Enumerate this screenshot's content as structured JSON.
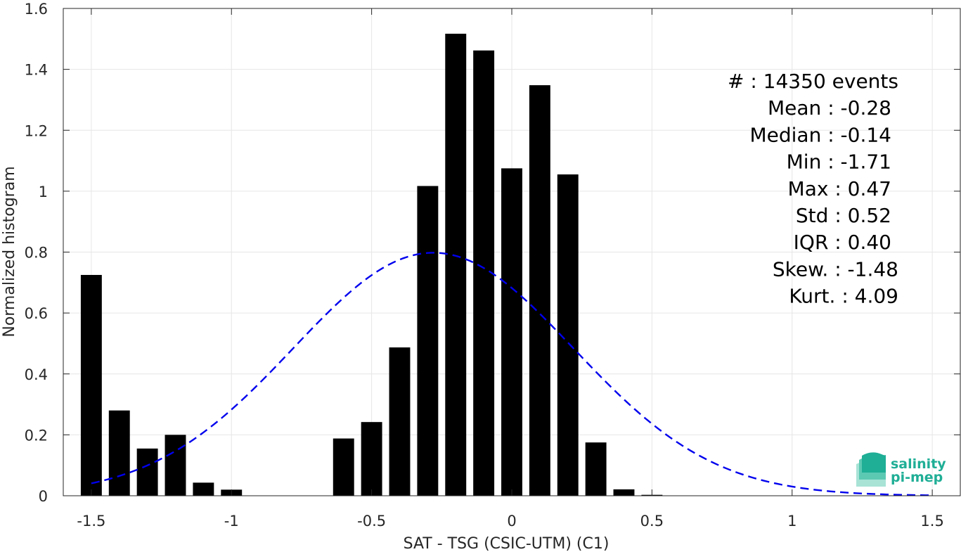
{
  "chart_data": {
    "type": "bar",
    "xlabel": "SAT - TSG (CSIC-UTM) (C1)",
    "ylabel": "Normalized histogram",
    "xlim": [
      -1.6,
      1.6
    ],
    "ylim": [
      0,
      1.6
    ],
    "xticks": [
      -1.5,
      -1,
      -0.5,
      0,
      0.5,
      1,
      1.5
    ],
    "xtick_labels": [
      "-1.5",
      "-1",
      "-0.5",
      "0",
      "0.5",
      "1",
      "1.5"
    ],
    "yticks": [
      0,
      0.2,
      0.4,
      0.6,
      0.8,
      1,
      1.2,
      1.4,
      1.6
    ],
    "ytick_labels": [
      "0",
      "0.2",
      "0.4",
      "0.6",
      "0.8",
      "1",
      "1.2",
      "1.4",
      "1.6"
    ],
    "grid": true,
    "bar_width": 0.075,
    "bars": {
      "x": [
        -1.5,
        -1.4,
        -1.3,
        -1.2,
        -1.1,
        -1.0,
        -0.9,
        -0.8,
        -0.7,
        -0.6,
        -0.5,
        -0.4,
        -0.3,
        -0.2,
        -0.1,
        0.0,
        0.1,
        0.2,
        0.3,
        0.4,
        0.5,
        0.6,
        0.7,
        0.8,
        0.9,
        1.0,
        1.1,
        1.2,
        1.3,
        1.4,
        1.5
      ],
      "values": [
        0.725,
        0.28,
        0.155,
        0.2,
        0.043,
        0.02,
        0.0,
        0.0,
        0.0,
        0.188,
        0.242,
        0.487,
        1.017,
        1.517,
        1.462,
        1.075,
        1.348,
        1.055,
        0.175,
        0.021,
        0.003,
        0.0,
        0.0,
        0.0,
        0.0,
        0.0,
        0.0,
        0.0,
        0.0,
        0.0,
        0.0
      ],
      "color": "#000000"
    },
    "fit_curve": {
      "style": "dashed",
      "color": "#0000ee",
      "mean": -0.28,
      "std": 0.5,
      "x_range": [
        -1.5,
        1.5
      ]
    },
    "stats": [
      "#  : 14350 events",
      "Mean : -0.28",
      "Median : -0.14",
      "Min : -1.71",
      "Max : 0.47",
      "Std : 0.52",
      "IQR : 0.40",
      "Skew. : -1.48",
      "Kurt. : 4.09"
    ]
  },
  "logo": {
    "line1": "salinity",
    "line2": "pi-mep",
    "color": "#1fae96"
  }
}
